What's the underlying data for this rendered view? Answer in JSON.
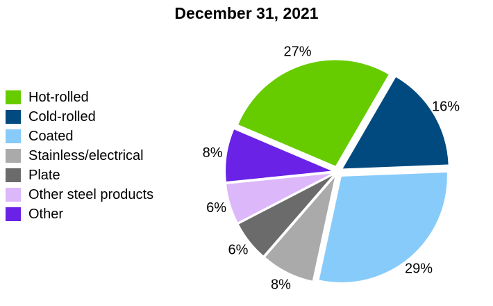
{
  "chart_data": {
    "type": "pie",
    "title": "December 31, 2021",
    "legend_position": "left",
    "slices": [
      {
        "name": "Hot-rolled",
        "value": 27,
        "label": "27%",
        "color": "#66cc00"
      },
      {
        "name": "Cold-rolled",
        "value": 16,
        "label": "16%",
        "color": "#004a80"
      },
      {
        "name": "Coated",
        "value": 29,
        "label": "29%",
        "color": "#87cbfa"
      },
      {
        "name": "Stainless/electrical",
        "value": 8,
        "label": "8%",
        "color": "#aaaaaa"
      },
      {
        "name": "Plate",
        "value": 6,
        "label": "6%",
        "color": "#6b6b6b"
      },
      {
        "name": "Other steel products",
        "value": 6,
        "label": "6%",
        "color": "#dcb8fa"
      },
      {
        "name": "Other",
        "value": 8,
        "label": "8%",
        "color": "#6a22e6"
      }
    ]
  }
}
